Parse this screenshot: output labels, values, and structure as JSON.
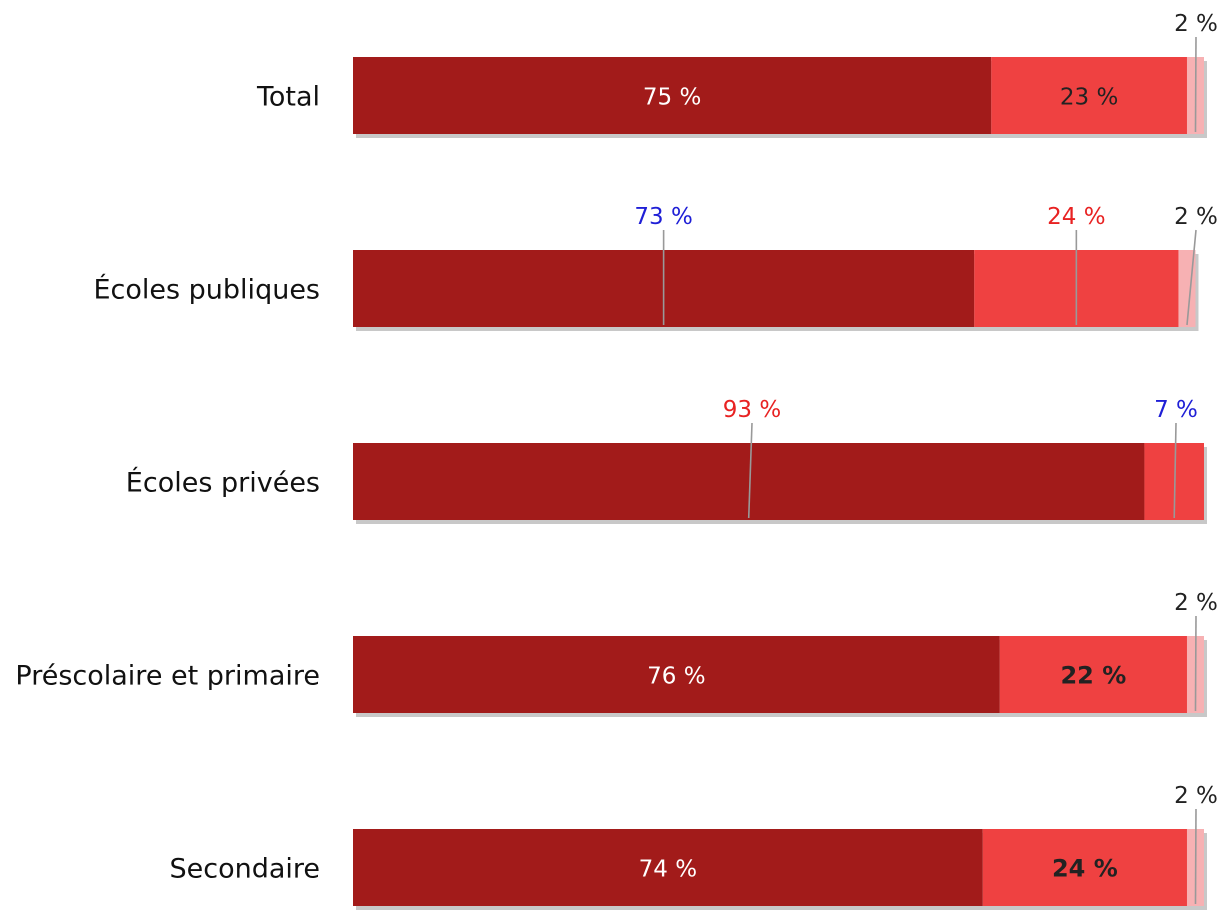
{
  "chart_data": {
    "type": "bar",
    "orientation": "horizontal",
    "stacked": true,
    "percent_stacked": true,
    "title": "",
    "xlabel": "",
    "ylabel": "",
    "xlim": [
      0,
      100
    ],
    "grid": false,
    "legend": "none",
    "categories": [
      "Total",
      "Écoles publiques",
      "Écoles privées",
      "Préscolaire et primaire",
      "Secondaire"
    ],
    "series": [
      {
        "color": "#a21b1a",
        "values": [
          75,
          73,
          93,
          76,
          74
        ]
      },
      {
        "color": "#ef4141",
        "values": [
          23,
          24,
          7,
          22,
          24
        ]
      },
      {
        "color": "#f7b1b3",
        "values": [
          2,
          2,
          0,
          2,
          2
        ]
      }
    ],
    "data_labels": [
      [
        "75 %",
        "23 %",
        "2 %"
      ],
      [
        "73 %",
        "24 %",
        "2 %"
      ],
      [
        "93 %",
        "7 %",
        ""
      ],
      [
        "76 %",
        "22 %",
        "2 %"
      ],
      [
        "74 %",
        "24 %",
        "2 %"
      ]
    ],
    "label_colors": {
      "inside_dark": "#ffffff",
      "inside_light": "#222222",
      "callout_default": "#222222",
      "callout_blue": "#1f1fd6",
      "callout_red": "#e82222",
      "leader": "#999999",
      "shadow": "#c8c8c8"
    }
  }
}
